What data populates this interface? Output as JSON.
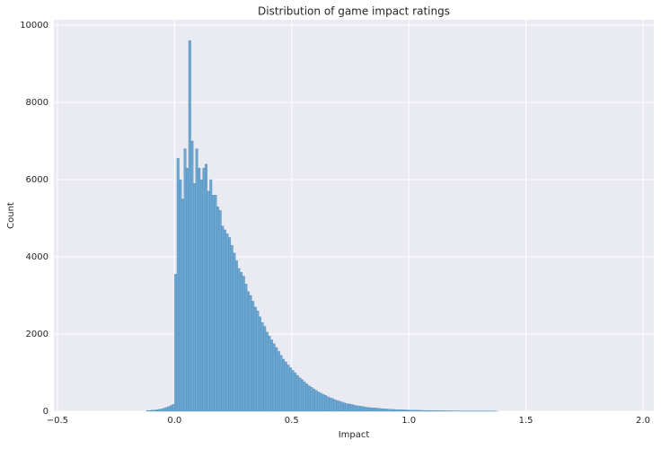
{
  "chart_data": {
    "type": "histogram",
    "title": "Distribution of game impact ratings",
    "xlabel": "Impact",
    "ylabel": "Count",
    "color": "#6aa6d0",
    "grid": true,
    "xlim": [
      -0.515,
      2.046
    ],
    "ylim": [
      0,
      10140
    ],
    "xticks": [
      {
        "value": -0.5,
        "label": "−0.5"
      },
      {
        "value": 0,
        "label": "0.0"
      },
      0.5,
      {
        "value": 1,
        "label": "1.0"
      },
      1.5,
      {
        "value": 2,
        "label": "2.0"
      }
    ],
    "yticks": [
      0,
      2000,
      4000,
      6000,
      8000,
      10000
    ],
    "bins": [
      -0.12,
      -0.11,
      -0.1,
      -0.09,
      -0.08,
      -0.07,
      -0.06,
      -0.05,
      -0.04,
      -0.03,
      -0.02,
      -0.01,
      0,
      0.01,
      0.02,
      0.03,
      0.04,
      0.05,
      0.06,
      0.07,
      0.08,
      0.09,
      0.1,
      0.11,
      0.12,
      0.13,
      0.14,
      0.15,
      0.16,
      0.17,
      0.18,
      0.19,
      0.2,
      0.21,
      0.22,
      0.23,
      0.24,
      0.25,
      0.26,
      0.27,
      0.28,
      0.29,
      0.3,
      0.31,
      0.32,
      0.33,
      0.34,
      0.35,
      0.36,
      0.37,
      0.38,
      0.39,
      0.4,
      0.41,
      0.42,
      0.43,
      0.44,
      0.45,
      0.46,
      0.47,
      0.48,
      0.49,
      0.5,
      0.51,
      0.52,
      0.53,
      0.54,
      0.55,
      0.56,
      0.57,
      0.58,
      0.59,
      0.6,
      0.61,
      0.62,
      0.63,
      0.64,
      0.65,
      0.66,
      0.67,
      0.68,
      0.69,
      0.7,
      0.71,
      0.72,
      0.73,
      0.74,
      0.75,
      0.76,
      0.77,
      0.78,
      0.79,
      0.8,
      0.81,
      0.82,
      0.83,
      0.84,
      0.85,
      0.86,
      0.87,
      0.88,
      0.89,
      0.9,
      0.91,
      0.92,
      0.93,
      0.94,
      0.95,
      0.96,
      0.97,
      0.98,
      0.99,
      1,
      1.01,
      1.02,
      1.03,
      1.04,
      1.05,
      1.06,
      1.07,
      1.08,
      1.09,
      1.1,
      1.11,
      1.12,
      1.13,
      1.14,
      1.15,
      1.16,
      1.17,
      1.18,
      1.19,
      1.2,
      1.21,
      1.22,
      1.23,
      1.24,
      1.25,
      1.26,
      1.27,
      1.28,
      1.29,
      1.3,
      1.31,
      1.32,
      1.33,
      1.34,
      1.35,
      1.36,
      1.37,
      1.38
    ],
    "values": [
      20,
      20,
      30,
      30,
      40,
      50,
      60,
      80,
      100,
      120,
      150,
      180,
      3550,
      6550,
      6000,
      5500,
      6800,
      6300,
      9600,
      7000,
      5900,
      6800,
      6300,
      6000,
      6300,
      6400,
      5700,
      6000,
      5600,
      5600,
      5300,
      5200,
      4800,
      4700,
      4600,
      4500,
      4300,
      4100,
      3900,
      3700,
      3600,
      3500,
      3300,
      3100,
      3000,
      2850,
      2700,
      2600,
      2450,
      2300,
      2200,
      2050,
      1950,
      1850,
      1750,
      1650,
      1550,
      1450,
      1350,
      1280,
      1200,
      1130,
      1060,
      1000,
      930,
      870,
      820,
      760,
      710,
      660,
      620,
      580,
      540,
      500,
      470,
      440,
      410,
      380,
      350,
      330,
      300,
      280,
      260,
      240,
      220,
      200,
      190,
      180,
      165,
      150,
      140,
      130,
      120,
      110,
      100,
      95,
      90,
      85,
      80,
      75,
      70,
      65,
      60,
      55,
      50,
      48,
      45,
      42,
      40,
      38,
      36,
      34,
      32,
      30,
      28,
      26,
      25,
      24,
      22,
      20,
      20,
      18,
      18,
      16,
      15,
      15,
      14,
      14,
      13,
      12,
      12,
      11,
      10,
      10,
      9,
      9,
      8,
      8,
      7,
      7,
      6,
      6,
      6,
      5,
      5,
      5,
      4,
      4,
      4,
      3
    ]
  }
}
